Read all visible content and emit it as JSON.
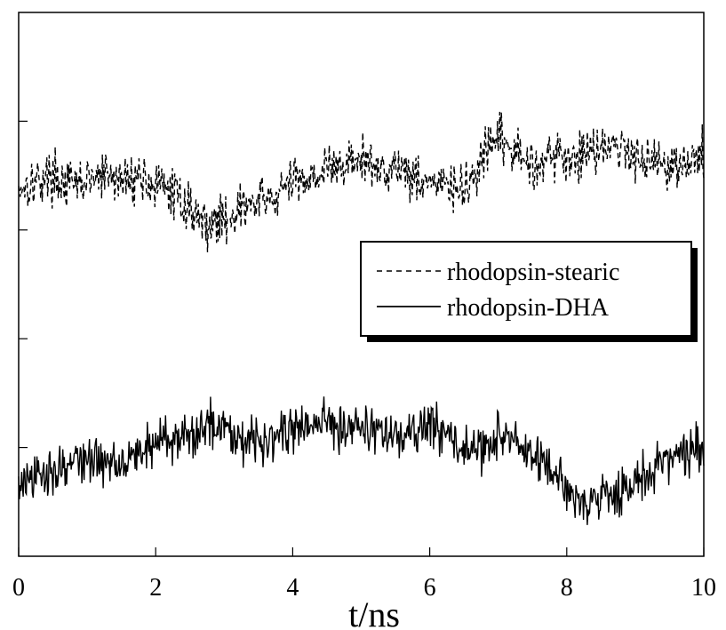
{
  "chart_data": {
    "type": "line",
    "xlabel": "t/ns",
    "ylabel": "",
    "xlim": [
      0,
      10
    ],
    "ylim": [
      0,
      5
    ],
    "x_ticks": [
      0,
      2,
      4,
      6,
      8,
      10
    ],
    "x_tick_labels": [
      "0",
      "2",
      "4",
      "6",
      "8",
      "10"
    ],
    "y_ticks": [
      1,
      2,
      3,
      4
    ],
    "y_tick_labels": [],
    "grid": false,
    "legend_position": "right",
    "series": [
      {
        "name": "rhodopsin-stearic",
        "style": "dashed",
        "color": "#000000",
        "x": [
          0,
          0.25,
          0.5,
          0.75,
          1.0,
          1.25,
          1.5,
          1.75,
          2.0,
          2.25,
          2.5,
          2.75,
          3.0,
          3.25,
          3.5,
          3.75,
          4.0,
          4.25,
          4.5,
          4.75,
          5.0,
          5.25,
          5.5,
          5.75,
          6.0,
          6.25,
          6.5,
          6.75,
          7.0,
          7.25,
          7.5,
          7.75,
          8.0,
          8.25,
          8.5,
          8.75,
          9.0,
          9.25,
          9.5,
          9.75,
          10.0
        ],
        "y": [
          3.4,
          3.45,
          3.5,
          3.4,
          3.45,
          3.5,
          3.45,
          3.5,
          3.4,
          3.35,
          3.2,
          3.05,
          3.1,
          3.2,
          3.25,
          3.3,
          3.45,
          3.5,
          3.55,
          3.6,
          3.65,
          3.55,
          3.6,
          3.5,
          3.45,
          3.4,
          3.35,
          3.6,
          3.85,
          3.7,
          3.6,
          3.7,
          3.65,
          3.7,
          3.8,
          3.75,
          3.7,
          3.65,
          3.6,
          3.6,
          3.7
        ]
      },
      {
        "name": "rhodopsin-DHA",
        "style": "solid",
        "color": "#000000",
        "x": [
          0,
          0.25,
          0.5,
          0.75,
          1.0,
          1.25,
          1.5,
          1.75,
          2.0,
          2.25,
          2.5,
          2.75,
          3.0,
          3.25,
          3.5,
          3.75,
          4.0,
          4.25,
          4.5,
          4.75,
          5.0,
          5.25,
          5.5,
          5.75,
          6.0,
          6.25,
          6.5,
          6.75,
          7.0,
          7.25,
          7.5,
          7.75,
          8.0,
          8.25,
          8.5,
          8.75,
          9.0,
          9.25,
          9.5,
          9.75,
          10.0
        ],
        "y": [
          0.65,
          0.7,
          0.8,
          0.85,
          0.9,
          0.85,
          0.9,
          0.95,
          1.05,
          1.1,
          1.05,
          1.25,
          1.2,
          1.1,
          1.05,
          1.15,
          1.15,
          1.2,
          1.25,
          1.2,
          1.2,
          1.15,
          1.1,
          1.1,
          1.2,
          1.15,
          0.95,
          1.0,
          1.1,
          1.05,
          0.9,
          0.8,
          0.6,
          0.5,
          0.55,
          0.6,
          0.65,
          0.8,
          0.9,
          0.95,
          1.0
        ]
      }
    ],
    "legend": {
      "entries": [
        "rhodopsin-stearic",
        "rhodopsin-DHA"
      ]
    }
  }
}
